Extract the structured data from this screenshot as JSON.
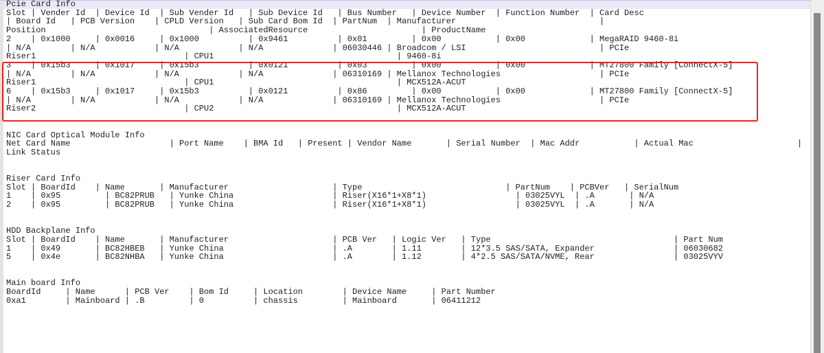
{
  "pcie": {
    "title": "Pcie Card Info",
    "lines": [
      [
        "Slot",
        "| Vender Id",
        "| Device Id",
        "| Sub Vender Id",
        "| Sub Device Id",
        "| Bus Number",
        "| Device Number",
        "| Function Number",
        "| Card Desc"
      ],
      [
        "| Board Id",
        "| PCB Version",
        "| CPLD Version",
        "| Sub Card Bom Id",
        "| PartNum",
        "| Manufacturer",
        "|"
      ],
      [
        "Position",
        "| AssociatedResource",
        "| ProductName"
      ],
      [
        "2",
        "| 0x1000",
        "| 0x0016",
        "| 0x1000",
        "| 0x9461",
        "| 0x01",
        "| 0x00",
        "| 0x00",
        "| MegaRAID 9460-8i"
      ],
      [
        "| N/A",
        "| N/A",
        "| N/A",
        "| N/A",
        "| 06030446",
        "| Broadcom / LSI",
        "| PCIe"
      ],
      [
        "Riser1",
        "| CPU1",
        "| 9460-8i"
      ],
      [
        "3",
        "| 0x15b3",
        "| 0x1017",
        "| 0x15b3",
        "| 0x0121",
        "| 0x03",
        "| 0x00",
        "| 0x00",
        "| MT27800 Family [ConnectX-5]"
      ],
      [
        "| N/A",
        "| N/A",
        "| N/A",
        "| N/A",
        "| 06310169",
        "| Mellanox Technologies",
        "| PCIe"
      ],
      [
        "Riser1",
        "| CPU1",
        "| MCX512A-ACUT"
      ],
      [
        "6",
        "| 0x15b3",
        "| 0x1017",
        "| 0x15b3",
        "| 0x0121",
        "| 0x86",
        "| 0x00",
        "| 0x00",
        "| MT27800 Family [ConnectX-5]"
      ],
      [
        "| N/A",
        "| N/A",
        "| N/A",
        "| N/A",
        "| 06310169",
        "| Mellanox Technologies",
        "| PCIe"
      ],
      [
        "Riser2",
        "| CPU2",
        "| MCX512A-ACUT"
      ]
    ]
  },
  "nic": {
    "title": "NIC Card Optical Module Info",
    "lines": [
      [
        "Net Card Name",
        "| Port Name",
        "| BMA Id",
        "| Present",
        "| Vendor Name",
        "| Serial Number",
        "| Mac Addr",
        "| Actual Mac",
        "|"
      ],
      [
        "Link Status"
      ]
    ]
  },
  "riser": {
    "title": "Riser Card Info",
    "lines": [
      [
        "Slot",
        "| BoardId",
        "| Name",
        "| Manufacturer",
        "| Type",
        "| PartNum",
        "| PCBVer",
        "| SerialNum"
      ],
      [
        "1",
        "| 0x95",
        "| BC82PRUB",
        "| Yunke China",
        "| Riser(X16*1+X8*1)",
        "| 03025VYL",
        "| .A",
        "| N/A"
      ],
      [
        "2",
        "| 0x95",
        "| BC82PRUB",
        "| Yunke China",
        "| Riser(X16*1+X8*1)",
        "| 03025VYL",
        "| .A",
        "| N/A"
      ]
    ]
  },
  "hdd": {
    "title": "HDD Backplane Info",
    "lines": [
      [
        "Slot",
        "| BoardId",
        "| Name",
        "| Manufacturer",
        "| PCB Ver",
        "| Logic Ver",
        "| Type",
        "| Part Num"
      ],
      [
        "1",
        "| 0x49",
        "| BC82HBEB",
        "| Yunke China",
        "| .A",
        "| 1.11",
        "| 12*3.5 SAS/SATA, Expander",
        "| 06030682"
      ],
      [
        "5",
        "| 0x4e",
        "| BC82NHBA",
        "| Yunke China",
        "| .A",
        "| 1.12",
        "| 4*2.5 SAS/SATA/NVME, Rear",
        "| 03025VYV"
      ]
    ]
  },
  "mainboard": {
    "title": "Main board Info",
    "lines": [
      [
        "BoardId",
        "| Name",
        "| PCB Ver",
        "| Bom Id",
        "| Location",
        "| Device Name",
        "| Part Number"
      ],
      [
        "0xa1",
        "| Mainboard",
        "| .B",
        "| 0",
        "| chassis",
        "| Mainboard",
        "| 06411212"
      ]
    ]
  },
  "colors": {
    "highlight_box": "#ff1a1a",
    "current_line": "#e8e8fb",
    "text": "#1e1e1e"
  }
}
